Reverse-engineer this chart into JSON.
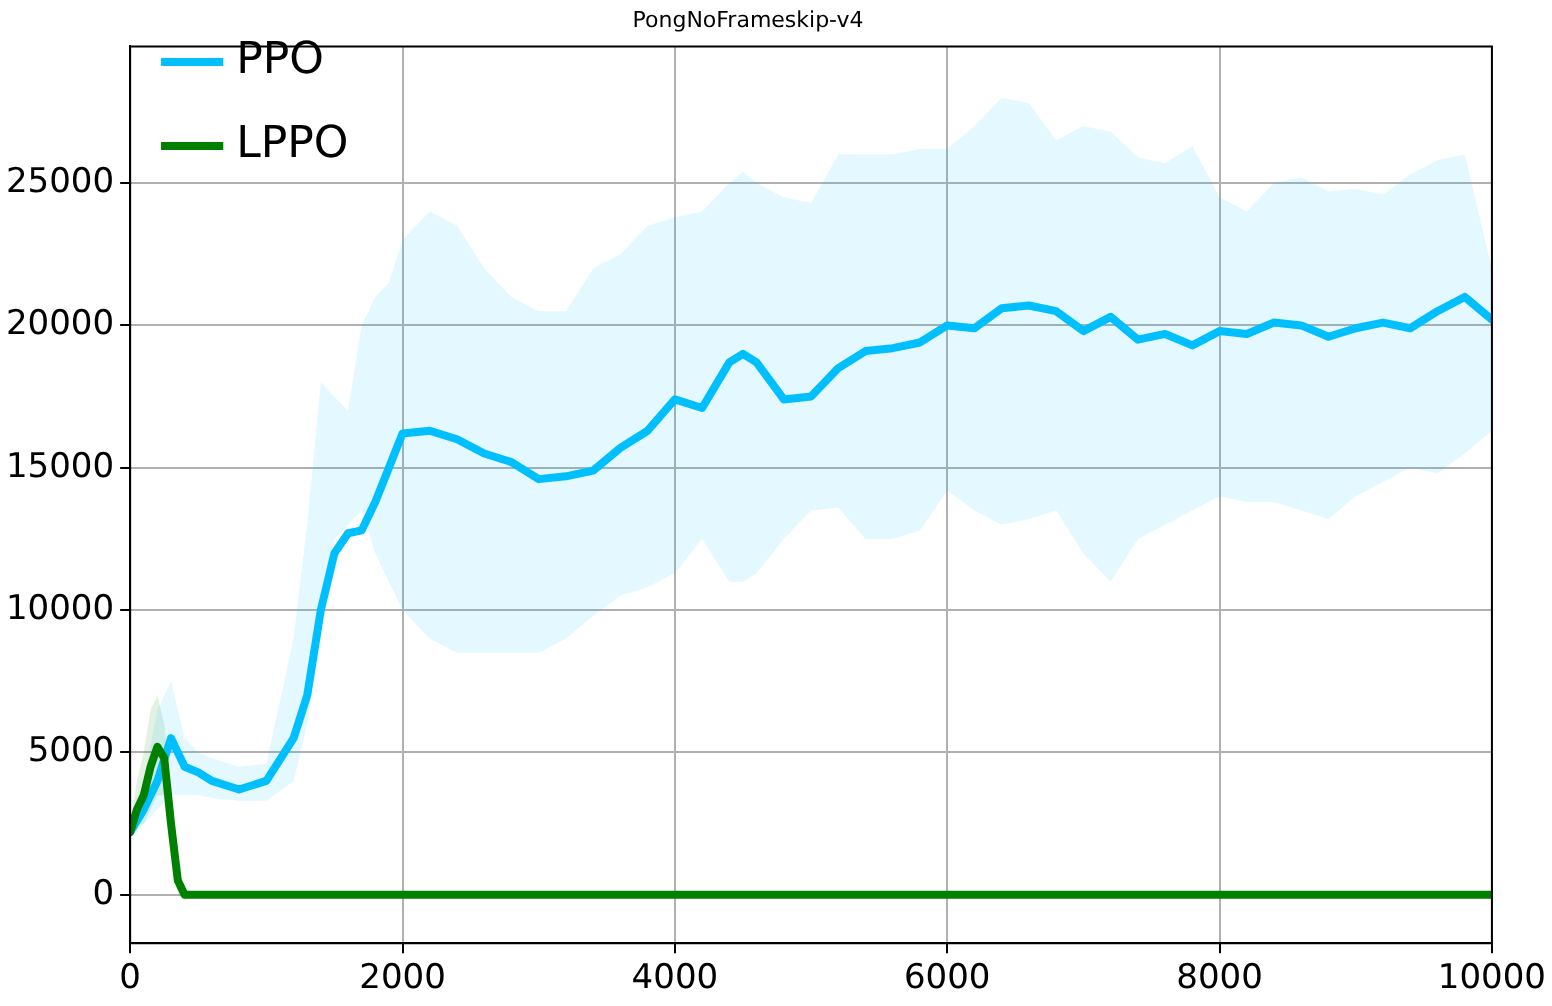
{
  "chart_data": {
    "type": "line",
    "title": "PongNoFrameskip-v4",
    "xlim": [
      0,
      10000
    ],
    "xticks": [
      0,
      2000,
      4000,
      6000,
      8000,
      10000
    ],
    "ylim": [
      -1700,
      29800
    ],
    "yticks": [
      0,
      5000,
      10000,
      15000,
      20000,
      25000
    ],
    "grid": true,
    "legend": "top left",
    "marker": "none",
    "line_style": "solid",
    "series": [
      {
        "name": "PPO",
        "color": "#00bfff",
        "x": [
          0,
          100,
          200,
          300,
          400,
          500,
          600,
          800,
          1000,
          1200,
          1300,
          1400,
          1500,
          1600,
          1700,
          1800,
          1900,
          2000,
          2200,
          2400,
          2600,
          2800,
          3000,
          3200,
          3400,
          3600,
          3800,
          4000,
          4200,
          4400,
          4500,
          4600,
          4800,
          5000,
          5200,
          5400,
          5600,
          5800,
          6000,
          6200,
          6400,
          6600,
          6800,
          7000,
          7200,
          7400,
          7600,
          7800,
          8000,
          8200,
          8400,
          8600,
          8800,
          9000,
          9200,
          9400,
          9600,
          9800,
          10000
        ],
        "values": [
          2200,
          3000,
          4000,
          5500,
          4500,
          4300,
          4000,
          3700,
          4000,
          5500,
          7000,
          10000,
          12000,
          12700,
          12800,
          13800,
          15000,
          16200,
          16300,
          16000,
          15500,
          15200,
          14600,
          14700,
          14900,
          15700,
          16300,
          17400,
          17100,
          18700,
          19000,
          18700,
          17400,
          17500,
          18500,
          19100,
          19200,
          19400,
          20000,
          19900,
          20600,
          20700,
          20500,
          19800,
          20300,
          19500,
          19700,
          19300,
          19800,
          19700,
          20100,
          20000,
          19600,
          19900,
          20100,
          19900,
          20500,
          21000,
          20200
        ],
        "upper": [
          2500,
          4000,
          6500,
          7500,
          5500,
          5000,
          4800,
          4500,
          4600,
          9000,
          13000,
          18000,
          17500,
          17000,
          20000,
          21000,
          21500,
          23000,
          24000,
          23500,
          22000,
          21000,
          20500,
          20500,
          22000,
          22500,
          23500,
          23800,
          24000,
          25000,
          25400,
          25000,
          24500,
          24300,
          26000,
          26000,
          26000,
          26200,
          26200,
          27000,
          28000,
          27800,
          26500,
          27000,
          26800,
          25900,
          25700,
          26300,
          24500,
          24000,
          25000,
          25200,
          24700,
          24800,
          24600,
          25300,
          25800,
          26000,
          22000
        ],
        "lower": [
          2000,
          2500,
          3000,
          3500,
          3500,
          3500,
          3400,
          3300,
          3300,
          4000,
          6000,
          10000,
          12500,
          13000,
          13500,
          12000,
          11000,
          10000,
          9000,
          8500,
          8500,
          8500,
          8500,
          9000,
          9800,
          10500,
          10800,
          11300,
          12500,
          11000,
          11000,
          11300,
          12500,
          13500,
          13600,
          12500,
          12500,
          12800,
          14200,
          13500,
          13000,
          13200,
          13500,
          12000,
          11000,
          12500,
          13000,
          13500,
          14000,
          13800,
          13800,
          13500,
          13200,
          14000,
          14500,
          15000,
          14800,
          15500,
          16300
        ]
      },
      {
        "name": "LPPO",
        "color": "#008000",
        "x": [
          0,
          50,
          100,
          150,
          200,
          250,
          300,
          350,
          400,
          500,
          1000,
          10000
        ],
        "values": [
          2200,
          3000,
          3500,
          4500,
          5200,
          4800,
          2500,
          500,
          0,
          0,
          0,
          0
        ],
        "upper": [
          2500,
          4000,
          5000,
          6500,
          7000,
          6000,
          3500,
          1000,
          200,
          0,
          0,
          0
        ],
        "lower": [
          2000,
          2500,
          2500,
          3000,
          3500,
          3500,
          1500,
          0,
          -200,
          0,
          0,
          0
        ]
      }
    ]
  }
}
